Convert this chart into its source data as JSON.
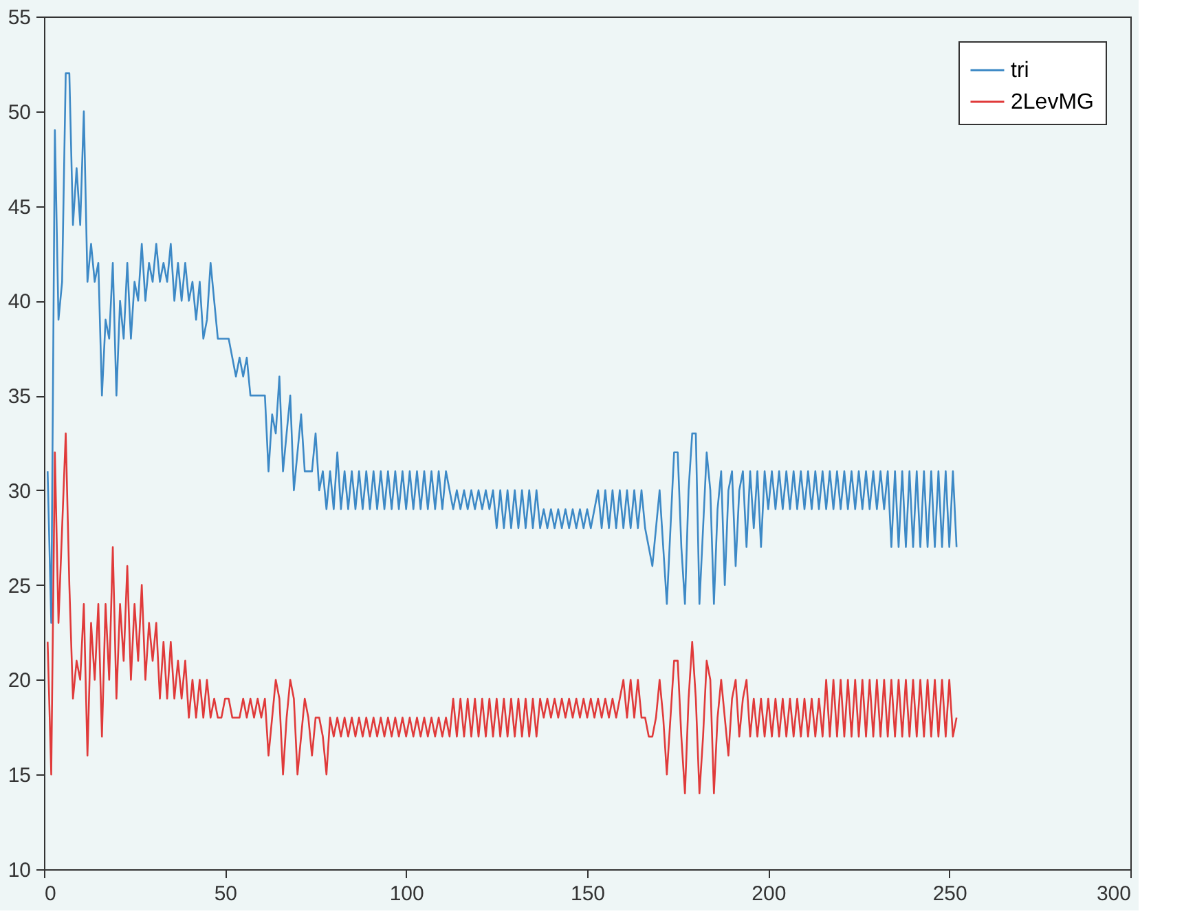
{
  "chart_data": {
    "type": "line",
    "x": [
      1,
      2,
      3,
      4,
      5,
      6,
      7,
      8,
      9,
      10,
      11,
      12,
      13,
      14,
      15,
      16,
      17,
      18,
      19,
      20,
      21,
      22,
      23,
      24,
      25,
      26,
      27,
      28,
      29,
      30,
      31,
      32,
      33,
      34,
      35,
      36,
      37,
      38,
      39,
      40,
      41,
      42,
      43,
      44,
      45,
      46,
      47,
      48,
      49,
      50,
      51,
      52,
      53,
      54,
      55,
      56,
      57,
      58,
      59,
      60,
      61,
      62,
      63,
      64,
      65,
      66,
      67,
      68,
      69,
      70,
      71,
      72,
      73,
      74,
      75,
      76,
      77,
      78,
      79,
      80,
      81,
      82,
      83,
      84,
      85,
      86,
      87,
      88,
      89,
      90,
      91,
      92,
      93,
      94,
      95,
      96,
      97,
      98,
      99,
      100,
      101,
      102,
      103,
      104,
      105,
      106,
      107,
      108,
      109,
      110,
      111,
      112,
      113,
      114,
      115,
      116,
      117,
      118,
      119,
      120,
      121,
      122,
      123,
      124,
      125,
      126,
      127,
      128,
      129,
      130,
      131,
      132,
      133,
      134,
      135,
      136,
      137,
      138,
      139,
      140,
      141,
      142,
      143,
      144,
      145,
      146,
      147,
      148,
      149,
      150,
      151,
      152,
      153,
      154,
      155,
      156,
      157,
      158,
      159,
      160,
      161,
      162,
      163,
      164,
      165,
      166,
      167,
      168,
      169,
      170,
      171,
      172,
      173,
      174,
      175,
      176,
      177,
      178,
      179,
      180,
      181,
      182,
      183,
      184,
      185,
      186,
      187,
      188,
      189,
      190,
      191,
      192,
      193,
      194,
      195,
      196,
      197,
      198,
      199,
      200,
      201,
      202,
      203,
      204,
      205,
      206,
      207,
      208,
      209,
      210,
      211,
      212,
      213,
      214,
      215,
      216,
      217,
      218,
      219,
      220,
      221,
      222,
      223,
      224,
      225,
      226,
      227,
      228,
      229,
      230,
      231,
      232,
      233,
      234,
      235,
      236,
      237,
      238,
      239,
      240,
      241,
      242,
      243,
      244,
      245,
      246,
      247,
      248,
      249,
      250,
      251,
      252
    ],
    "series": [
      {
        "name": "tri",
        "color": "#3d89c6",
        "values": [
          31,
          23,
          49,
          39,
          41,
          52,
          52,
          44,
          47,
          44,
          50,
          41,
          43,
          41,
          42,
          35,
          39,
          38,
          42,
          35,
          40,
          38,
          42,
          38,
          41,
          40,
          43,
          40,
          42,
          41,
          43,
          41,
          42,
          41,
          43,
          40,
          42,
          40,
          42,
          40,
          41,
          39,
          41,
          38,
          39,
          42,
          40,
          38,
          38,
          38,
          38,
          37,
          36,
          37,
          36,
          37,
          35,
          35,
          35,
          35,
          35,
          31,
          34,
          33,
          36,
          31,
          33,
          35,
          30,
          32,
          34,
          31,
          31,
          31,
          33,
          30,
          31,
          29,
          31,
          29,
          32,
          29,
          31,
          29,
          31,
          29,
          31,
          29,
          31,
          29,
          31,
          29,
          31,
          29,
          31,
          29,
          31,
          29,
          31,
          29,
          31,
          29,
          31,
          29,
          31,
          29,
          31,
          29,
          31,
          29,
          31,
          30,
          29,
          30,
          29,
          30,
          29,
          30,
          29,
          30,
          29,
          30,
          29,
          30,
          28,
          30,
          28,
          30,
          28,
          30,
          28,
          30,
          28,
          30,
          28,
          30,
          28,
          29,
          28,
          29,
          28,
          29,
          28,
          29,
          28,
          29,
          28,
          29,
          28,
          29,
          28,
          29,
          30,
          28,
          30,
          28,
          30,
          28,
          30,
          28,
          30,
          28,
          30,
          28,
          30,
          28,
          27,
          26,
          28,
          30,
          27,
          24,
          28,
          32,
          32,
          27,
          24,
          30,
          33,
          33,
          24,
          28,
          32,
          30,
          24,
          29,
          31,
          25,
          30,
          31,
          26,
          30,
          31,
          27,
          31,
          28,
          31,
          27,
          31,
          29,
          31,
          29,
          31,
          29,
          31,
          29,
          31,
          29,
          31,
          29,
          31,
          29,
          31,
          29,
          31,
          29,
          31,
          29,
          31,
          29,
          31,
          29,
          31,
          29,
          31,
          29,
          31,
          29,
          31,
          29,
          31,
          29,
          31,
          27,
          31,
          27,
          31,
          27,
          31,
          27,
          31,
          27,
          31,
          27,
          31,
          27,
          31,
          27,
          31,
          27,
          31,
          27
        ]
      },
      {
        "name": "2LevMG",
        "color": "#e03a3a",
        "values": [
          22,
          15,
          32,
          23,
          28,
          33,
          25,
          19,
          21,
          20,
          24,
          16,
          23,
          20,
          24,
          17,
          24,
          20,
          27,
          19,
          24,
          21,
          26,
          20,
          24,
          21,
          25,
          20,
          23,
          21,
          23,
          19,
          22,
          19,
          22,
          19,
          21,
          19,
          21,
          18,
          20,
          18,
          20,
          18,
          20,
          18,
          19,
          18,
          18,
          19,
          19,
          18,
          18,
          18,
          19,
          18,
          19,
          18,
          19,
          18,
          19,
          16,
          18,
          20,
          19,
          15,
          18,
          20,
          19,
          15,
          17,
          19,
          18,
          16,
          18,
          18,
          17,
          15,
          18,
          17,
          18,
          17,
          18,
          17,
          18,
          17,
          18,
          17,
          18,
          17,
          18,
          17,
          18,
          17,
          18,
          17,
          18,
          17,
          18,
          17,
          18,
          17,
          18,
          17,
          18,
          17,
          18,
          17,
          18,
          17,
          18,
          17,
          19,
          17,
          19,
          17,
          19,
          17,
          19,
          17,
          19,
          17,
          19,
          17,
          19,
          17,
          19,
          17,
          19,
          17,
          19,
          17,
          19,
          17,
          19,
          17,
          19,
          18,
          19,
          18,
          19,
          18,
          19,
          18,
          19,
          18,
          19,
          18,
          19,
          18,
          19,
          18,
          19,
          18,
          19,
          18,
          19,
          18,
          19,
          20,
          18,
          20,
          18,
          20,
          18,
          18,
          17,
          17,
          18,
          20,
          18,
          15,
          18,
          21,
          21,
          17,
          14,
          19,
          22,
          19,
          14,
          17,
          21,
          20,
          14,
          18,
          20,
          18,
          16,
          19,
          20,
          17,
          19,
          20,
          17,
          19,
          17,
          19,
          17,
          19,
          17,
          19,
          17,
          19,
          17,
          19,
          17,
          19,
          17,
          19,
          17,
          19,
          17,
          19,
          17,
          20,
          17,
          20,
          17,
          20,
          17,
          20,
          17,
          20,
          17,
          20,
          17,
          20,
          17,
          20,
          17,
          20,
          17,
          20,
          17,
          20,
          17,
          20,
          17,
          20,
          17,
          20,
          17,
          20,
          17,
          20,
          17,
          20,
          17,
          20,
          17,
          18
        ]
      }
    ],
    "xlim": [
      0,
      300
    ],
    "xticks": [
      0,
      50,
      100,
      150,
      200,
      250,
      300
    ],
    "ylim": [
      10,
      55
    ],
    "yticks": [
      10,
      15,
      20,
      25,
      30,
      35,
      40,
      45,
      50,
      55
    ],
    "grid": false,
    "legend": "top right",
    "line_style": "solid",
    "marker": "none"
  }
}
